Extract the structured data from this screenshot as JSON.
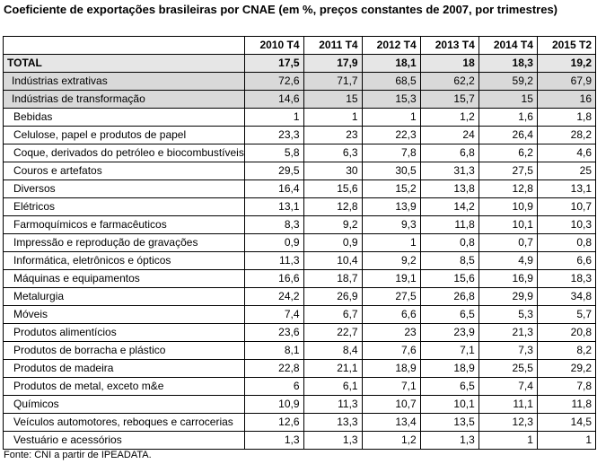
{
  "title": "Coeficiente de exportações brasileiras por CNAE (em %, preços constantes de 2007, por trimestres)",
  "columns": [
    "",
    "2010 T4",
    "2011 T4",
    "2012 T4",
    "2013 T4",
    "2014 T4",
    "2015 T2"
  ],
  "rows": [
    {
      "label": "TOTAL",
      "values": [
        "17,5",
        "17,9",
        "18,1",
        "18",
        "18,3",
        "19,2"
      ]
    },
    {
      "label": "Indústrias extrativas",
      "values": [
        "72,6",
        "71,7",
        "68,5",
        "62,2",
        "59,2",
        "67,9"
      ]
    },
    {
      "label": "Indústrias de transformação",
      "values": [
        "14,6",
        "15",
        "15,3",
        "15,7",
        "15",
        "16"
      ]
    },
    {
      "label": "Bebidas",
      "values": [
        "1",
        "1",
        "1",
        "1,2",
        "1,6",
        "1,8"
      ]
    },
    {
      "label": "Celulose, papel e produtos de papel",
      "values": [
        "23,3",
        "23",
        "22,3",
        "24",
        "26,4",
        "28,2"
      ]
    },
    {
      "label": "Coque, derivados do petróleo e biocombustíveis",
      "values": [
        "5,8",
        "6,3",
        "7,8",
        "6,8",
        "6,2",
        "4,6"
      ]
    },
    {
      "label": "Couros e artefatos",
      "values": [
        "29,5",
        "30",
        "30,5",
        "31,3",
        "27,5",
        "25"
      ]
    },
    {
      "label": "Diversos",
      "values": [
        "16,4",
        "15,6",
        "15,2",
        "13,8",
        "12,8",
        "13,1"
      ]
    },
    {
      "label": "Elétricos",
      "values": [
        "13,1",
        "12,8",
        "13,9",
        "14,2",
        "10,9",
        "10,7"
      ]
    },
    {
      "label": "Farmoquímicos e farmacêuticos",
      "values": [
        "8,3",
        "9,2",
        "9,3",
        "11,8",
        "10,1",
        "10,3"
      ]
    },
    {
      "label": "Impressão e reprodução de gravações",
      "values": [
        "0,9",
        "0,9",
        "1",
        "0,8",
        "0,7",
        "0,8"
      ]
    },
    {
      "label": "Informática, eletrônicos e ópticos",
      "values": [
        "11,3",
        "10,4",
        "9,2",
        "8,5",
        "4,9",
        "6,6"
      ]
    },
    {
      "label": "Máquinas e equipamentos",
      "values": [
        "16,6",
        "18,7",
        "19,1",
        "15,6",
        "16,9",
        "18,3"
      ]
    },
    {
      "label": "Metalurgia",
      "values": [
        "24,2",
        "26,9",
        "27,5",
        "26,8",
        "29,9",
        "34,8"
      ]
    },
    {
      "label": "Móveis",
      "values": [
        "7,4",
        "6,7",
        "6,6",
        "6,5",
        "5,3",
        "5,7"
      ]
    },
    {
      "label": "Produtos alimentícios",
      "values": [
        "23,6",
        "22,7",
        "23",
        "23,9",
        "21,3",
        "20,8"
      ]
    },
    {
      "label": "Produtos de borracha e plástico",
      "values": [
        "8,1",
        "8,4",
        "7,6",
        "7,1",
        "7,3",
        "8,2"
      ]
    },
    {
      "label": "Produtos de madeira",
      "values": [
        "22,8",
        "21,1",
        "18,9",
        "18,9",
        "25,5",
        "29,2"
      ]
    },
    {
      "label": "Produtos de metal, exceto m&e",
      "values": [
        "6",
        "6,1",
        "7,1",
        "6,5",
        "7,4",
        "7,8"
      ]
    },
    {
      "label": "Químicos",
      "values": [
        "10,9",
        "11,3",
        "10,7",
        "10,1",
        "11,1",
        "11,8"
      ]
    },
    {
      "label": "Veículos automotores, reboques e carrocerias",
      "values": [
        "12,6",
        "13,3",
        "13,4",
        "13,5",
        "12,3",
        "14,5"
      ]
    },
    {
      "label": "Vestuário e acessórios",
      "values": [
        "1,3",
        "1,3",
        "1,2",
        "1,3",
        "1",
        "1"
      ]
    }
  ],
  "source": "Fonte: CNI a partir de IPEADATA."
}
